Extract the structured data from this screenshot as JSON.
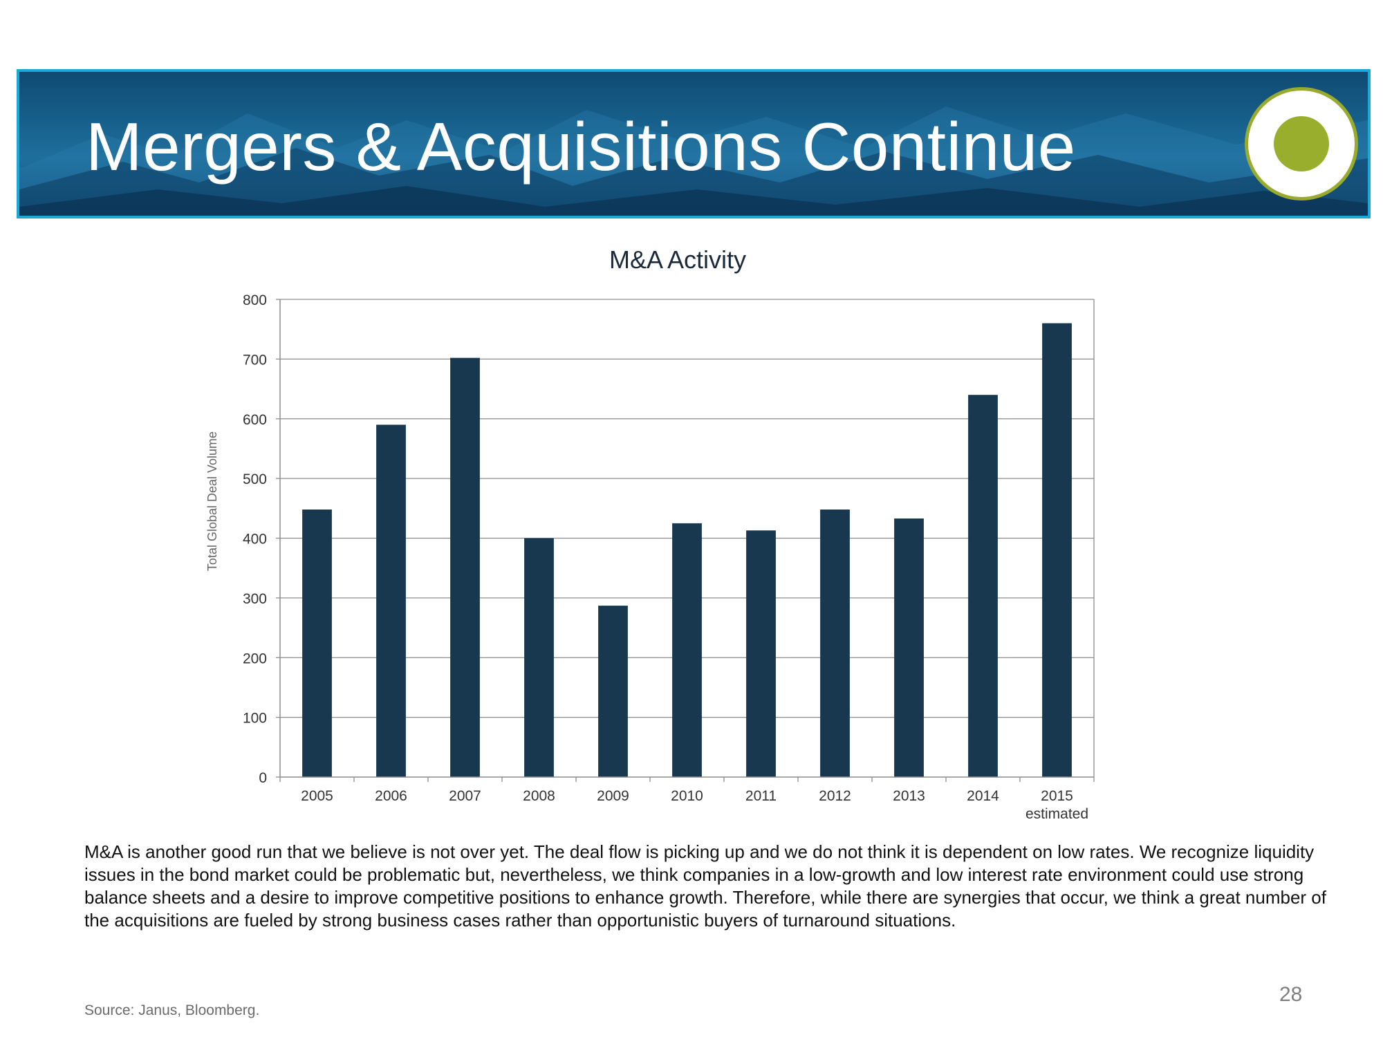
{
  "slide": {
    "title": "Mergers & Acquisitions Continue",
    "body": "M&A is another good run that we believe is not over yet. The deal flow is picking up and we do not think it is dependent on low rates. We recognize liquidity issues in the bond market could be problematic but, nevertheless, we think companies in a low-growth and low interest rate environment could use strong balance sheets and a desire to improve competitive positions to enhance growth. Therefore, while there are synergies that occur, we think a great number of the acquisitions are fueled by strong business cases rather than opportunistic buyers of turnaround situations.",
    "source": "Source: Janus, Bloomberg.",
    "page_number": "28"
  },
  "colors": {
    "banner_border": "#1aa9d6",
    "banner_background": "#17608c",
    "logo_green": "#9aae2e",
    "bar_fill": "#17384f",
    "gridline": "#8c8c8c"
  },
  "chart_data": {
    "type": "bar",
    "title": "M&A Activity",
    "ylabel": "Total Global Deal Volume",
    "xlabel": "",
    "categories": [
      "2005",
      "2006",
      "2007",
      "2008",
      "2009",
      "2010",
      "2011",
      "2012",
      "2013",
      "2014",
      "2015"
    ],
    "category_sublabels": [
      "",
      "",
      "",
      "",
      "",
      "",
      "",
      "",
      "",
      "",
      "estimated"
    ],
    "values": [
      448,
      590,
      702,
      400,
      287,
      425,
      413,
      448,
      433,
      640,
      760
    ],
    "ylim": [
      0,
      800
    ],
    "yticks": [
      0,
      100,
      200,
      300,
      400,
      500,
      600,
      700,
      800
    ],
    "grid": true,
    "legend": "none"
  }
}
